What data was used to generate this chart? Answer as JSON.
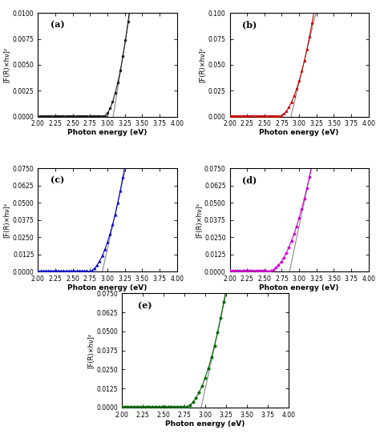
{
  "subplots": [
    {
      "label": "(a)",
      "color": "#1a1a1a",
      "marker": "o",
      "markersize": 2.2,
      "ylim": [
        0,
        0.01
      ],
      "yticks": [
        0.0,
        0.0025,
        0.005,
        0.0075,
        0.01
      ],
      "ytick_labels": [
        "0.0000",
        "0.0025",
        "0.0050",
        "0.0075",
        "0.0100"
      ],
      "onset": 2.93,
      "steep": 0.068,
      "base": 0.0001,
      "tang_xstart": 3.05,
      "tang_xend": 3.42
    },
    {
      "label": "(b)",
      "color": "#cc0000",
      "marker": "o",
      "markersize": 2.0,
      "ylim": [
        0,
        0.1
      ],
      "yticks": [
        0.0,
        0.025,
        0.05,
        0.075,
        0.1
      ],
      "ytick_labels": [
        "0.000",
        "0.025",
        "0.050",
        "0.075",
        "0.100"
      ],
      "onset": 2.7,
      "steep": 0.38,
      "base": 0.0015,
      "tang_xstart": 2.88,
      "tang_xend": 3.25
    },
    {
      "label": "(c)",
      "color": "#0000cc",
      "marker": "^",
      "markersize": 2.5,
      "ylim": [
        0,
        0.075
      ],
      "yticks": [
        0.0,
        0.0125,
        0.025,
        0.0375,
        0.05,
        0.0625,
        0.075
      ],
      "ytick_labels": [
        "0.0000",
        "0.0125",
        "0.0250",
        "0.0375",
        "0.0500",
        "0.0625",
        "0.0750"
      ],
      "onset": 2.72,
      "steep": 0.27,
      "base": 0.0008,
      "tang_xstart": 2.92,
      "tang_xend": 3.35
    },
    {
      "label": "(d)",
      "color": "#cc00cc",
      "marker": "D",
      "markersize": 2.0,
      "ylim": [
        0,
        0.075
      ],
      "yticks": [
        0.0,
        0.0125,
        0.025,
        0.0375,
        0.05,
        0.0625,
        0.075
      ],
      "ytick_labels": [
        "0.0000",
        "0.0125",
        "0.0250",
        "0.0375",
        "0.0500",
        "0.0625",
        "0.0750"
      ],
      "onset": 2.55,
      "steep": 0.19,
      "base": 0.0012,
      "tang_xstart": 2.8,
      "tang_xend": 3.55
    },
    {
      "label": "(e)",
      "color": "#006600",
      "marker": "o",
      "markersize": 2.5,
      "ylim": [
        0,
        0.075
      ],
      "yticks": [
        0.0,
        0.0125,
        0.025,
        0.0375,
        0.05,
        0.0625,
        0.075
      ],
      "ytick_labels": [
        "0.0000",
        "0.0125",
        "0.0250",
        "0.0375",
        "0.0500",
        "0.0625",
        "0.0750"
      ],
      "onset": 2.75,
      "steep": 0.31,
      "base": 0.0008,
      "tang_xstart": 2.93,
      "tang_xend": 3.38
    }
  ],
  "xlim": [
    2.0,
    4.0
  ],
  "xticks": [
    2.0,
    2.25,
    2.5,
    2.75,
    3.0,
    3.25,
    3.5,
    3.75,
    4.0
  ],
  "xtick_labels": [
    "2.00",
    "2.25",
    "2.50",
    "2.75",
    "3.00",
    "3.25",
    "3.50",
    "3.75",
    "4.00"
  ],
  "xlabel": "Photon energy (eV)",
  "ylabel": "[F(R)×hν]²",
  "fig_bg": "#ffffff",
  "ax_bg": "#ffffff"
}
